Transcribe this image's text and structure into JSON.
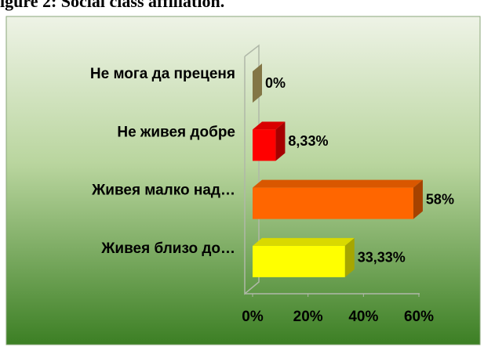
{
  "chart_data": {
    "type": "bar3d-horizontal",
    "title": "igure 2: Social class affiliation.",
    "categories": [
      "Не мога да преценя",
      "Не живея добре",
      "Живея малко над…",
      "Живея близо до…"
    ],
    "values": [
      0,
      8.33,
      58,
      33.33
    ],
    "value_labels": [
      "0%",
      "8,33%",
      "58%",
      "33,33%"
    ],
    "colors": [
      "#c9b66b",
      "#ff0000",
      "#ff6600",
      "#ffff00"
    ],
    "xlim": [
      0,
      60
    ],
    "xticks": [
      {
        "value": 0,
        "label": "0%"
      },
      {
        "value": 20,
        "label": "20%"
      },
      {
        "value": 40,
        "label": "40%"
      },
      {
        "value": 60,
        "label": "60%"
      }
    ]
  }
}
